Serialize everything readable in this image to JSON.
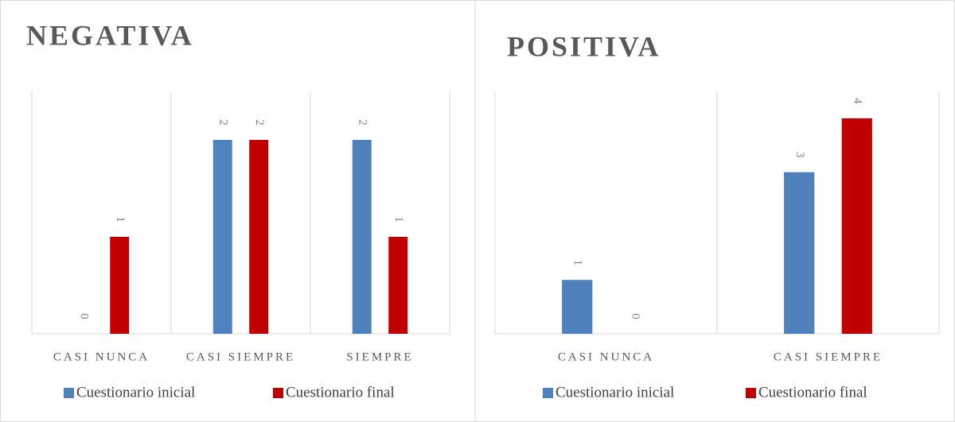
{
  "chart_data": [
    {
      "type": "bar",
      "title": "NEGATIVA",
      "categories": [
        "CASI NUNCA",
        "CASI SIEMPRE",
        "SIEMPRE"
      ],
      "series": [
        {
          "name": "Cuestionario inicial",
          "color": "#4f81bd",
          "values": [
            0,
            2,
            2
          ]
        },
        {
          "name": "Cuestionario final",
          "color": "#c00000",
          "values": [
            1,
            2,
            1
          ]
        }
      ],
      "ylim": [
        0,
        2.5
      ],
      "legend": "bottom"
    },
    {
      "type": "bar",
      "title": "POSITIVA",
      "categories": [
        "CASI NUNCA",
        "CASI SIEMPRE"
      ],
      "series": [
        {
          "name": "Cuestionario inicial",
          "color": "#4f81bd",
          "values": [
            1,
            3
          ]
        },
        {
          "name": "Cuestionario final",
          "color": "#c00000",
          "values": [
            0,
            4
          ]
        }
      ],
      "ylim": [
        0,
        4.5
      ],
      "legend": "bottom"
    }
  ]
}
